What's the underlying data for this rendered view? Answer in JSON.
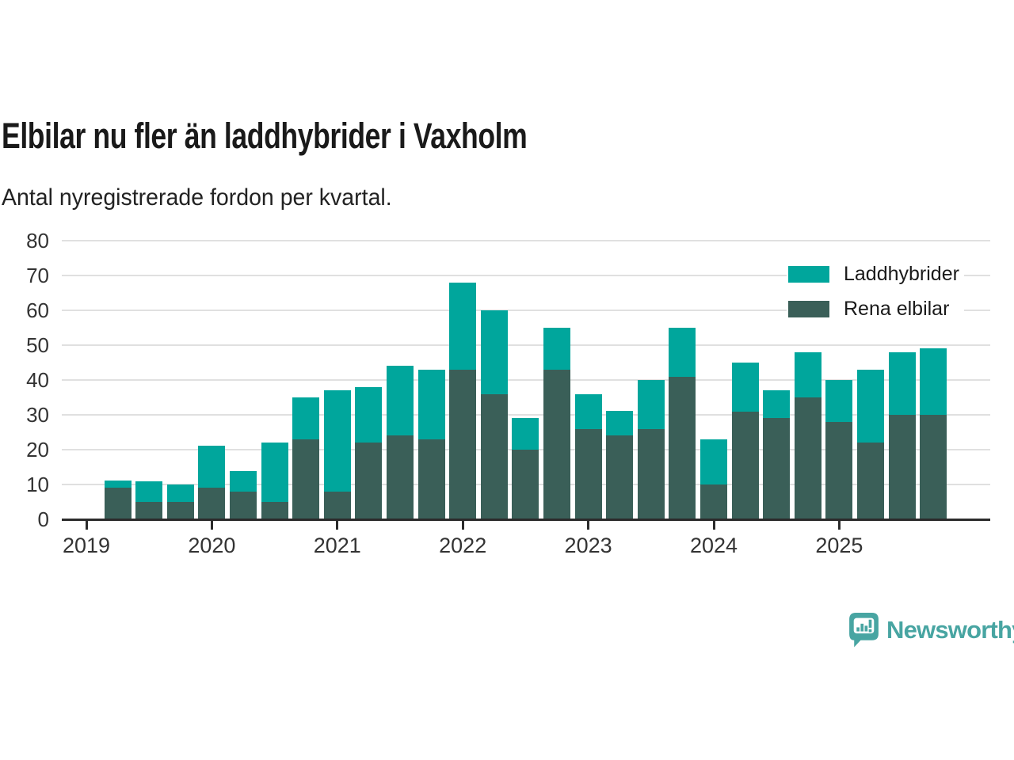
{
  "page": {
    "title": "Elbilar nu fler än laddhybrider i Vaxholm",
    "subtitle": "Antal nyregistrerade fordon per kvartal."
  },
  "chart_data": {
    "type": "bar",
    "stacked": true,
    "title": "Elbilar nu fler än laddhybrider i Vaxholm",
    "subtitle": "Antal nyregistrerade fordon per kvartal.",
    "categories": [
      "2019 Q2",
      "2019 Q3",
      "2019 Q4",
      "2020 Q1",
      "2020 Q2",
      "2020 Q3",
      "2020 Q4",
      "2021 Q1",
      "2021 Q2",
      "2021 Q3",
      "2021 Q4",
      "2022 Q1",
      "2022 Q2",
      "2022 Q3",
      "2022 Q4",
      "2023 Q1",
      "2023 Q2",
      "2023 Q3",
      "2023 Q4",
      "2024 Q1",
      "2024 Q2",
      "2024 Q3",
      "2024 Q4",
      "2025 Q1",
      "2025 Q2",
      "2025 Q3",
      "2025 Q4"
    ],
    "series": [
      {
        "name": "Laddhybrider",
        "color": "#00a69c",
        "values": [
          2,
          6,
          5,
          12,
          6,
          17,
          12,
          29,
          16,
          20,
          20,
          25,
          24,
          9,
          12,
          10,
          7,
          14,
          14,
          13,
          14,
          8,
          13,
          12,
          21,
          18,
          19
        ]
      },
      {
        "name": "Rena elbilar",
        "color": "#3a5f58",
        "values": [
          9,
          5,
          5,
          9,
          8,
          5,
          23,
          8,
          22,
          24,
          23,
          43,
          36,
          20,
          43,
          26,
          24,
          26,
          41,
          10,
          31,
          29,
          35,
          28,
          22,
          30,
          30
        ]
      }
    ],
    "stack_bottom_to_top": [
      "Rena elbilar",
      "Laddhybrider"
    ],
    "ylim": [
      0,
      80
    ],
    "yticks": [
      0,
      10,
      20,
      30,
      40,
      50,
      60,
      70,
      80
    ],
    "x_year_ticks": [
      "2019",
      "2020",
      "2021",
      "2022",
      "2023",
      "2024",
      "2025"
    ],
    "grid": "horizontal",
    "gridline_color": "#e0e0e0",
    "axis_color": "#2b2b2b",
    "legend_position": "top-right"
  },
  "branding": {
    "logo_text": "Newsworthy",
    "logo_color": "#48a5a2",
    "logo_icon": "newsworthy-speech-bubble-bar-chart-icon"
  }
}
